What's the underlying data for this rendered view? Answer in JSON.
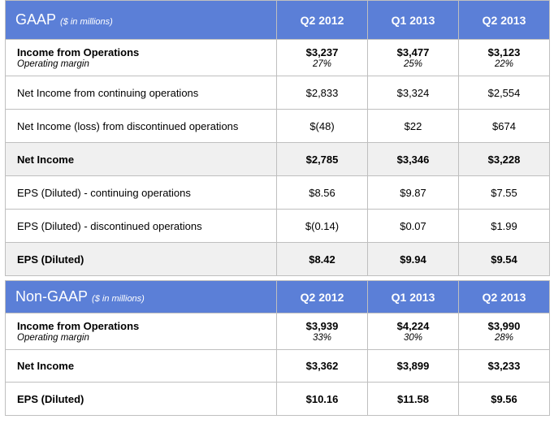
{
  "gaap": {
    "title": "GAAP",
    "unit": "($ in millions)",
    "columns": [
      "Q2 2012",
      "Q1 2013",
      "Q2 2013"
    ],
    "income_ops": {
      "label": "Income from Operations",
      "sublabel": "Operating margin",
      "values": [
        "$3,237",
        "$3,477",
        "$3,123"
      ],
      "margins": [
        "27%",
        "25%",
        "22%"
      ]
    },
    "net_income_cont": {
      "label": "Net Income from continuing operations",
      "values": [
        "$2,833",
        "$3,324",
        "$2,554"
      ]
    },
    "net_income_disc": {
      "label": "Net Income (loss) from discontinued operations",
      "values": [
        "$(48)",
        "$22",
        "$674"
      ]
    },
    "net_income": {
      "label": "Net Income",
      "values": [
        "$2,785",
        "$3,346",
        "$3,228"
      ]
    },
    "eps_cont": {
      "label": "EPS (Diluted) - continuing operations",
      "values": [
        "$8.56",
        "$9.87",
        "$7.55"
      ]
    },
    "eps_disc": {
      "label": "EPS (Diluted) - discontinued operations",
      "values": [
        "$(0.14)",
        "$0.07",
        "$1.99"
      ]
    },
    "eps": {
      "label": "EPS (Diluted)",
      "values": [
        "$8.42",
        "$9.94",
        "$9.54"
      ]
    }
  },
  "nongaap": {
    "title": "Non-GAAP",
    "unit": "($ in millions)",
    "columns": [
      "Q2 2012",
      "Q1 2013",
      "Q2 2013"
    ],
    "income_ops": {
      "label": "Income from Operations",
      "sublabel": "Operating margin",
      "values": [
        "$3,939",
        "$4,224",
        "$3,990"
      ],
      "margins": [
        "33%",
        "30%",
        "28%"
      ]
    },
    "net_income": {
      "label": "Net Income",
      "values": [
        "$3,362",
        "$3,899",
        "$3,233"
      ]
    },
    "eps": {
      "label": "EPS (Diluted)",
      "values": [
        "$10.16",
        "$11.58",
        "$9.56"
      ]
    }
  }
}
